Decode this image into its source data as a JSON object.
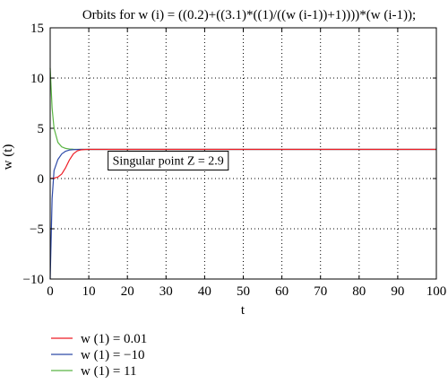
{
  "chart_data": {
    "type": "line",
    "title": "Orbits for w (i) = ((0.2)+((3.1)*((1)/((w (i-1))+1))))*(w (i-1));",
    "xlabel": "t",
    "ylabel": "w (t)",
    "xlim": [
      0,
      100
    ],
    "ylim": [
      -10,
      15
    ],
    "x_ticks": [
      0,
      10,
      20,
      30,
      40,
      50,
      60,
      70,
      80,
      90,
      100
    ],
    "y_ticks": [
      -10,
      -5,
      0,
      5,
      10,
      15
    ],
    "x_tick_labels": [
      "0",
      "10",
      "20",
      "30",
      "40",
      "50",
      "60",
      "70",
      "80",
      "90",
      "100"
    ],
    "y_tick_labels": [
      "−10",
      "−5",
      "0",
      "5",
      "10",
      "15"
    ],
    "grid": true,
    "grid_style": "dotted",
    "legend_position": "below-left",
    "annotation": {
      "text": "Singular point Z = 2.9",
      "x": 15,
      "y": 2.9
    },
    "series": [
      {
        "name": "w (1) = 0.01",
        "color": "#ee1c25",
        "x": [
          0,
          1,
          2,
          3,
          4,
          5,
          6,
          7,
          8,
          9,
          10,
          12,
          15,
          20,
          30,
          40,
          50,
          60,
          70,
          80,
          90,
          100
        ],
        "y": [
          0.01,
          0.04,
          0.15,
          0.45,
          1.08,
          1.86,
          2.45,
          2.75,
          2.86,
          2.89,
          2.9,
          2.9,
          2.9,
          2.9,
          2.9,
          2.9,
          2.9,
          2.9,
          2.9,
          2.9,
          2.9,
          2.9
        ]
      },
      {
        "name": "w (1) = −10",
        "color": "#2e4aa8",
        "x": [
          0,
          0.5,
          1,
          2,
          3,
          4,
          5,
          6,
          7,
          8,
          10,
          15,
          20,
          30,
          40,
          50,
          60,
          70,
          80,
          90,
          100
        ],
        "y": [
          -10,
          -2.0,
          0.8,
          1.9,
          2.45,
          2.72,
          2.84,
          2.88,
          2.89,
          2.9,
          2.9,
          2.9,
          2.9,
          2.9,
          2.9,
          2.9,
          2.9,
          2.9,
          2.9,
          2.9,
          2.9
        ]
      },
      {
        "name": "w (1) = 11",
        "color": "#5ab543",
        "x": [
          0,
          0.5,
          1,
          2,
          3,
          4,
          5,
          6,
          8,
          10,
          15,
          20,
          30,
          40,
          50,
          60,
          70,
          80,
          90,
          100
        ],
        "y": [
          11,
          7.0,
          5.0,
          3.6,
          3.15,
          3.0,
          2.94,
          2.92,
          2.9,
          2.9,
          2.9,
          2.9,
          2.9,
          2.9,
          2.9,
          2.9,
          2.9,
          2.9,
          2.9,
          2.9
        ]
      }
    ]
  }
}
